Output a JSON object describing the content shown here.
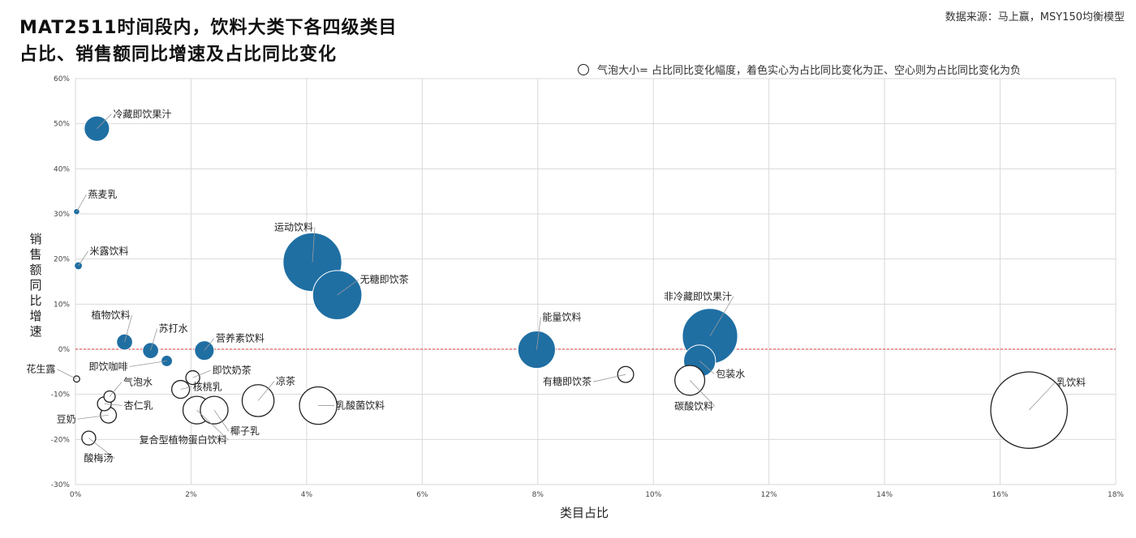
{
  "header": {
    "title_line1": "MAT2511时间段内，饮料大类下各四级类目",
    "title_line2": "占比、销售额同比增速及占比同比变化",
    "source": "数据来源：马上赢，MSY150均衡模型",
    "legend_note": "气泡大小=  占比同比变化幅度，着色实心为占比同比变化为正、空心则为占比同比变化为负"
  },
  "colors": {
    "positive_fill": "#1f6fa3",
    "negative_stroke": "#222222",
    "zero_line": "#e0343a",
    "grid": "#d9d9d9"
  },
  "chart_data": {
    "type": "scatter",
    "bubble": true,
    "xlabel": "类目占比",
    "ylabel": "销售额同比增速",
    "xlim": [
      0,
      18
    ],
    "ylim": [
      -30,
      60
    ],
    "x_ticks": [
      "0%",
      "2%",
      "4%",
      "6%",
      "8%",
      "10%",
      "12%",
      "14%",
      "16%",
      "18%"
    ],
    "y_ticks": [
      "-30%",
      "-20%",
      "-10%",
      "0%",
      "10%",
      "20%",
      "30%",
      "40%",
      "50%",
      "60%"
    ],
    "grid": true,
    "reference_line_y": 0,
    "points": [
      {
        "name": "冷藏即饮果汁",
        "x": 0.37,
        "y": 48.9,
        "size": 0.5,
        "positive": true
      },
      {
        "name": "燕麦乳",
        "x": 0.02,
        "y": 30.5,
        "size": 0.03,
        "positive": true
      },
      {
        "name": "米露饮料",
        "x": 0.05,
        "y": 18.5,
        "size": 0.05,
        "positive": true
      },
      {
        "name": "运动饮料",
        "x": 4.1,
        "y": 19.3,
        "size": 2.7,
        "positive": true
      },
      {
        "name": "无糖即饮茶",
        "x": 4.53,
        "y": 12.0,
        "size": 1.9,
        "positive": true
      },
      {
        "name": "植物饮料",
        "x": 0.85,
        "y": 1.6,
        "size": 0.2,
        "positive": true
      },
      {
        "name": "苏打水",
        "x": 1.3,
        "y": -0.3,
        "size": 0.2,
        "positive": true
      },
      {
        "name": "即饮咖啡",
        "x": 1.58,
        "y": -2.6,
        "size": 0.1,
        "positive": true
      },
      {
        "name": "营养素饮料",
        "x": 2.23,
        "y": -0.3,
        "size": 0.3,
        "positive": true
      },
      {
        "name": "能量饮料",
        "x": 7.98,
        "y": -0.1,
        "size": 1.1,
        "positive": true
      },
      {
        "name": "非冷藏即饮果汁",
        "x": 10.98,
        "y": 2.9,
        "size": 2.4,
        "positive": true
      },
      {
        "name": "包装水",
        "x": 10.8,
        "y": -2.6,
        "size": 0.8,
        "positive": true
      },
      {
        "name": "花生露",
        "x": 0.02,
        "y": -6.6,
        "size": 0.03,
        "positive": false
      },
      {
        "name": "即饮奶茶",
        "x": 2.03,
        "y": -6.3,
        "size": 0.15,
        "positive": false
      },
      {
        "name": "核桃乳",
        "x": 1.82,
        "y": -8.9,
        "size": 0.25,
        "positive": false
      },
      {
        "name": "气泡水",
        "x": 0.59,
        "y": -10.5,
        "size": 0.1,
        "positive": false
      },
      {
        "name": "杏仁乳",
        "x": 0.5,
        "y": -12.1,
        "size": 0.15,
        "positive": false
      },
      {
        "name": "豆奶",
        "x": 0.57,
        "y": -14.6,
        "size": 0.2,
        "positive": false
      },
      {
        "name": "酸梅汤",
        "x": 0.23,
        "y": -19.7,
        "size": 0.15,
        "positive": false
      },
      {
        "name": "复合型植物蛋白饮料",
        "x": 2.1,
        "y": -13.5,
        "size": 0.6,
        "positive": false
      },
      {
        "name": "椰子乳",
        "x": 2.4,
        "y": -13.5,
        "size": 0.6,
        "positive": false
      },
      {
        "name": "凉茶",
        "x": 3.16,
        "y": -11.4,
        "size": 0.8,
        "positive": false
      },
      {
        "name": "乳酸菌饮料",
        "x": 4.2,
        "y": -12.5,
        "size": 1.1,
        "positive": false
      },
      {
        "name": "有糖即饮茶",
        "x": 9.52,
        "y": -5.6,
        "size": 0.2,
        "positive": false
      },
      {
        "name": "碳酸饮料",
        "x": 10.63,
        "y": -6.9,
        "size": 0.7,
        "positive": false
      },
      {
        "name": "乳饮料",
        "x": 16.5,
        "y": -13.5,
        "size": 4.6,
        "positive": false
      }
    ]
  }
}
